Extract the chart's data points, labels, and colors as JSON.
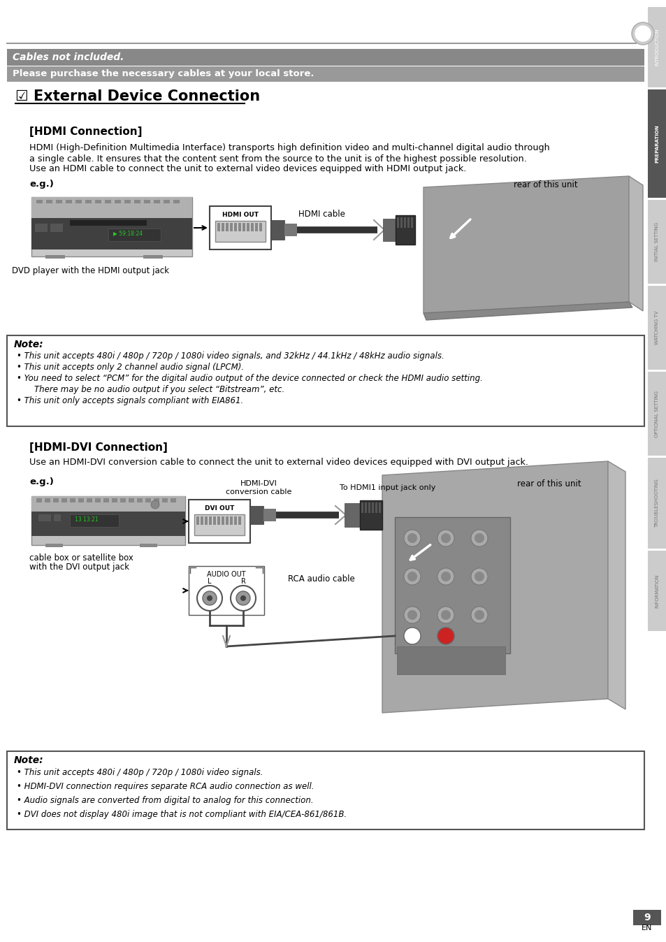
{
  "bg_color": "#ffffff",
  "sidebar_labels": [
    "INTRODUCTION",
    "PREPARATION",
    "INITIAL SETTING",
    "WATCHING TV",
    "OPTIONAL SETTING",
    "TROUBLESHOOTING",
    "INFORMATION"
  ],
  "sidebar_active": 1,
  "cables_not_included": "Cables not included.",
  "purchase_text": "Please purchase the necessary cables at your local store.",
  "main_title": "☑ External Device Connection",
  "hdmi_section_title": "[HDMI Connection]",
  "hdmi_desc1": "HDMI (High-Definition Multimedia Interface) transports high definition video and multi-channel digital audio through",
  "hdmi_desc2": "a single cable. It ensures that the content sent from the source to the unit is of the highest possible resolution.",
  "hdmi_desc3": "Use an HDMI cable to connect the unit to external video devices equipped with HDMI output jack.",
  "eg_label": "e.g.)",
  "rear_of_unit": "rear of this unit",
  "dvd_label": "DVD player with the HDMI output jack",
  "hdmi_cable_label": "HDMI cable",
  "hdmi_out_label": "HDMI OUT",
  "note1_title": "Note:",
  "note1_bullets": [
    "This unit accepts 480i / 480p / 720p / 1080i video signals, and 32kHz / 44.1kHz / 48kHz audio signals.",
    "This unit accepts only 2 channel audio signal (LPCM).",
    "You need to select “PCM” for the digital audio output of the device connected or check the HDMI audio setting.",
    "    There may be no audio output if you select “Bitstream”, etc.",
    "This unit only accepts signals compliant with EIA861."
  ],
  "hdmi_dvi_title": "[HDMI-DVI Connection]",
  "hdmi_dvi_desc": "Use an HDMI-DVI conversion cable to connect the unit to external video devices equipped with DVI output jack.",
  "eg2_label": "e.g.)",
  "hdmi_dvi_cable_label": "HDMI-DVI\nconversion cable",
  "to_hdmi1_label": "To HDMI1 input jack only",
  "rear_of_unit2": "rear of this unit",
  "dvi_out_label": "DVI OUT",
  "audio_out_label": "AUDIO OUT",
  "audio_lr_label": "L           R",
  "rca_cable_label": "RCA audio cable",
  "cable_box_label1": "cable box or satellite box",
  "cable_box_label2": "with the DVI output jack",
  "note2_title": "Note:",
  "note2_bullets": [
    "This unit accepts 480i / 480p / 720p / 1080i video signals.",
    "HDMI-DVI connection requires separate RCA audio connection as well.",
    "Audio signals are converted from digital to analog for this connection.",
    "DVI does not display 480i image that is not compliant with EIA/CEA-861/861B."
  ],
  "page_number": "9",
  "sidebar_sections": [
    [
      10,
      115,
      "#cccccc",
      "white"
    ],
    [
      128,
      155,
      "#555555",
      "white"
    ],
    [
      286,
      120,
      "#cccccc",
      "#777777"
    ],
    [
      409,
      120,
      "#cccccc",
      "#777777"
    ],
    [
      532,
      120,
      "#cccccc",
      "#777777"
    ],
    [
      655,
      130,
      "#cccccc",
      "#777777"
    ],
    [
      788,
      115,
      "#cccccc",
      "#777777"
    ]
  ]
}
